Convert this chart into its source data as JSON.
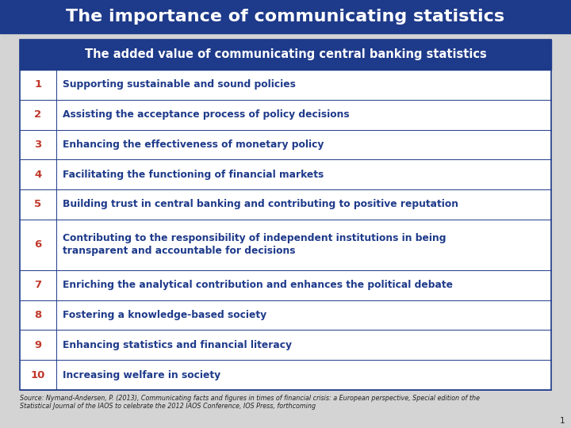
{
  "main_title": "The importance of communicating statistics",
  "main_title_bg": "#1e3a8a",
  "main_title_color": "#ffffff",
  "subtitle": "The added value of communicating central banking statistics",
  "subtitle_bg": "#1e3a8a",
  "subtitle_color": "#ffffff",
  "table_border": "#1e3a8a",
  "num_color": "#c0392b",
  "text_color": "#1e3a8a",
  "rows": [
    [
      "1",
      "Supporting sustainable and sound policies"
    ],
    [
      "2",
      "Assisting the acceptance process of policy decisions"
    ],
    [
      "3",
      "Enhancing the effectiveness of monetary policy"
    ],
    [
      "4",
      "Facilitating the functioning of financial markets"
    ],
    [
      "5",
      "Building trust in central banking and contributing to positive reputation"
    ],
    [
      "6",
      "Contributing to the responsibility of independent institutions in being\ntransparent and accountable for decisions"
    ],
    [
      "7",
      "Enriching the analytical contribution and enhances the political debate"
    ],
    [
      "8",
      "Fostering a knowledge-based society"
    ],
    [
      "9",
      "Enhancing statistics and financial literacy"
    ],
    [
      "10",
      "Increasing welfare in society"
    ]
  ],
  "row_heights_rel": [
    1,
    1,
    1,
    1,
    1,
    1.7,
    1,
    1,
    1,
    1
  ],
  "source_line1": "Source: Nymand-Andersen, P. (2013), Communicating facts and figures in times of financial crisis: a European perspective, Special edition of the",
  "source_line2": "Statistical Journal of the IAOS to celebrate the 2012 IAOS Conference, IOS Press, forthcoming",
  "page_num": "1",
  "outer_bg": "#ffffff",
  "fig_bg": "#d4d4d4"
}
